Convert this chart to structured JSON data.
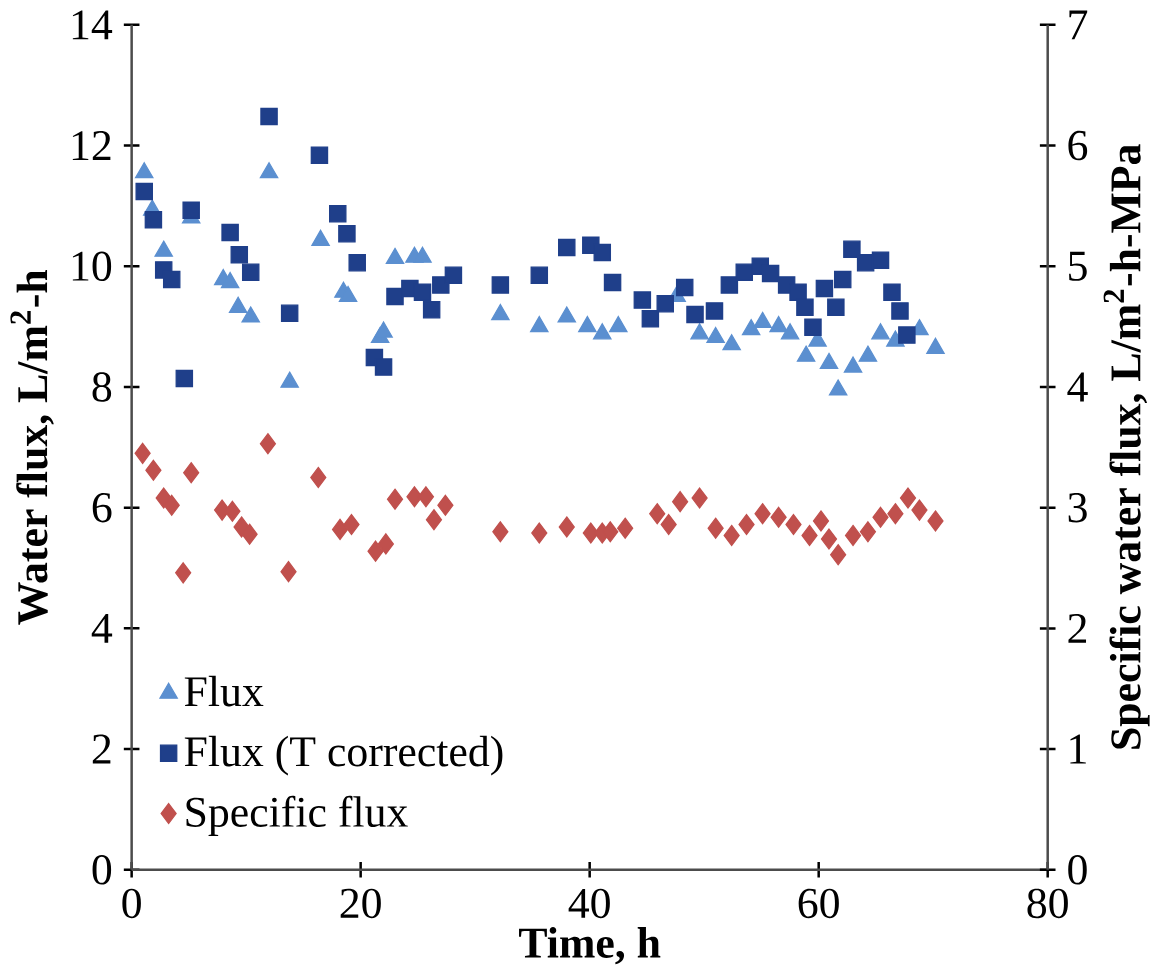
{
  "chart_data": {
    "type": "scatter",
    "xlabel": "Time, h",
    "ylabel": "Water flux, L/m$^{2}$-h",
    "y2label": "Specific water flux, L/m$^{2}$-h-MPa",
    "xlim": [
      0,
      80
    ],
    "xticks": [
      0,
      20,
      40,
      60,
      80
    ],
    "ylim": [
      0,
      14
    ],
    "yticks": [
      0,
      2,
      4,
      6,
      8,
      10,
      12,
      14
    ],
    "y2lim": [
      0,
      7
    ],
    "y2ticks": [
      0,
      1,
      2,
      3,
      4,
      5,
      6,
      7
    ],
    "legend": "bottom left",
    "grid": false,
    "series": [
      {
        "name": "Flux",
        "color": "#5b8fd0",
        "marker": "triangle",
        "x": [
          1.1,
          1.8,
          2.8,
          5.2,
          8.0,
          8.6,
          9.3,
          10.4,
          12.0,
          13.8,
          16.5,
          18.5,
          18.9,
          21.7,
          22.0,
          23.0,
          24.7,
          25.4,
          32.2,
          35.6,
          38.0,
          39.8,
          40.7,
          41.1,
          42.5,
          46.6,
          47.6,
          49.6,
          51.0,
          52.4,
          54.1,
          55.1,
          56.5,
          57.5,
          58.9,
          59.9,
          60.9,
          61.7,
          63.0,
          64.3,
          65.4,
          66.7,
          67.8,
          68.8,
          70.2
        ],
        "values": [
          11.55,
          10.93,
          10.25,
          10.8,
          9.78,
          9.73,
          9.32,
          9.16,
          11.55,
          8.08,
          10.43,
          9.57,
          9.5,
          8.82,
          8.91,
          10.13,
          10.15,
          10.15,
          9.2,
          9.0,
          9.16,
          9.0,
          null,
          8.88,
          9.0,
          null,
          9.5,
          8.88,
          8.82,
          8.7,
          8.95,
          9.07,
          9.0,
          8.88,
          8.51,
          8.76,
          8.39,
          7.95,
          8.33,
          8.51,
          8.88,
          8.76,
          null,
          8.95,
          8.64
        ]
      },
      {
        "name": "Flux (T corrected)",
        "color": "#1f3f8a",
        "marker": "square",
        "x": [
          1.1,
          1.9,
          2.8,
          3.5,
          4.6,
          5.2,
          8.0,
          8.6,
          9.4,
          10.4,
          12.0,
          13.8,
          16.4,
          18.0,
          18.8,
          19.7,
          21.2,
          22.0,
          23.0,
          24.3,
          25.4,
          26.2,
          27.0,
          28.1,
          32.2,
          35.6,
          38.0,
          40.1,
          41.1,
          42.0,
          44.6,
          45.3,
          46.6,
          48.3,
          49.2,
          50.9,
          52.2,
          53.5,
          54.9,
          55.8,
          57.2,
          58.2,
          58.8,
          59.5,
          60.5,
          61.5,
          62.1,
          62.9,
          64.1,
          65.4,
          66.4,
          67.1,
          67.7
        ],
        "values": [
          11.24,
          10.77,
          9.94,
          9.78,
          8.14,
          10.93,
          null,
          10.56,
          10.19,
          9.9,
          12.48,
          9.22,
          11.84,
          10.87,
          10.54,
          10.06,
          8.49,
          8.33,
          9.5,
          9.63,
          9.57,
          9.28,
          9.69,
          9.85,
          9.69,
          9.85,
          10.31,
          10.35,
          10.23,
          9.73,
          9.44,
          9.13,
          9.38,
          9.65,
          9.2,
          9.26,
          9.69,
          9.9,
          10.0,
          9.88,
          9.69,
          9.57,
          9.32,
          8.99,
          9.63,
          9.32,
          9.78,
          10.28,
          10.06,
          10.1,
          9.57,
          9.26,
          8.86
        ]
      },
      {
        "name": "Specific flux",
        "color": "#c0504d",
        "marker": "diamond",
        "axis": "y2",
        "x": [
          0.96,
          1.9,
          2.8,
          3.5,
          4.5,
          5.2,
          7.9,
          8.8,
          9.6,
          10.3,
          11.9,
          13.7,
          16.3,
          18.2,
          19.2,
          21.3,
          22.2,
          23.0,
          24.7,
          25.7,
          26.4,
          27.4,
          32.2,
          35.6,
          38.0,
          40.1,
          41.1,
          41.8,
          43.1,
          45.9,
          46.9,
          47.9,
          49.6,
          51.0,
          52.4,
          53.7,
          55.1,
          56.5,
          57.8,
          59.2,
          60.2,
          60.9,
          61.7,
          63.0,
          64.3,
          65.4,
          66.7,
          67.8,
          68.8,
          70.2
        ],
        "values": [
          3.45,
          3.31,
          3.08,
          3.02,
          2.46,
          3.29,
          2.98,
          2.97,
          2.84,
          2.78,
          3.53,
          2.47,
          3.25,
          2.82,
          2.86,
          2.64,
          2.7,
          3.07,
          3.09,
          3.09,
          2.9,
          3.02,
          2.8,
          2.79,
          2.84,
          2.79,
          2.79,
          2.8,
          2.83,
          2.95,
          2.86,
          3.05,
          3.08,
          2.83,
          2.77,
          2.86,
          2.95,
          2.92,
          2.86,
          2.77,
          2.89,
          2.74,
          2.61,
          2.77,
          2.8,
          2.92,
          2.95,
          3.08,
          2.98,
          2.89
        ]
      }
    ]
  }
}
